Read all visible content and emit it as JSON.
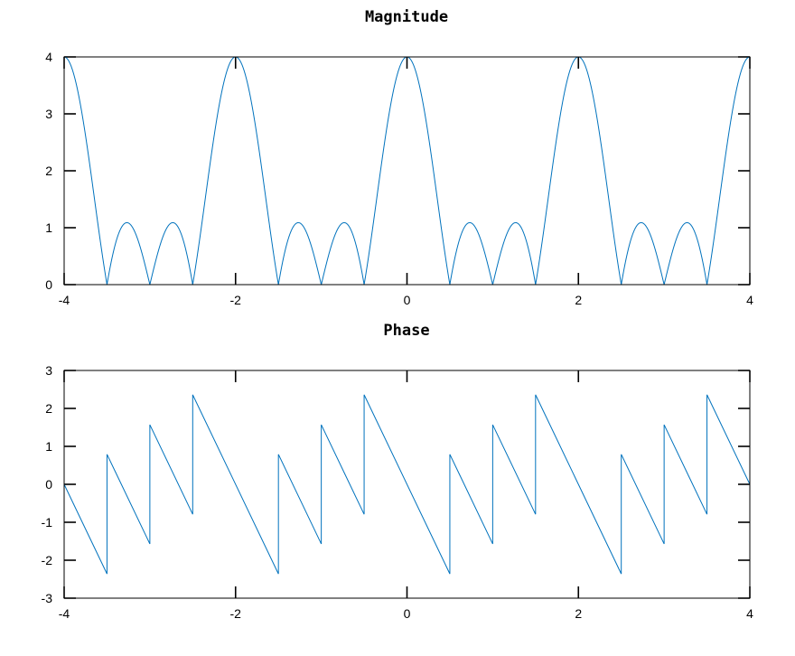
{
  "chart_data": [
    {
      "type": "line",
      "title": "Magnitude",
      "xlabel": "",
      "ylabel": "",
      "xlim": [
        -4,
        4
      ],
      "ylim": [
        0,
        4
      ],
      "xticks": [
        -4,
        -2,
        0,
        2,
        4
      ],
      "yticks": [
        0,
        1,
        2,
        3,
        4
      ],
      "xtick_labels": [
        "-4",
        "-2",
        "0",
        "2",
        "4"
      ],
      "ytick_labels": [
        "0",
        "1",
        "2",
        "3",
        "4"
      ],
      "grid": false,
      "series_color": "#0072bd",
      "series": [
        {
          "function": "abs(sin(2*pi*f)/sin(pi*f/2))",
          "period": 2,
          "max": 4,
          "zeros": [
            -3.5,
            -3,
            -2.5,
            -1.5,
            -1,
            -0.5,
            0.5,
            1,
            1.5,
            2.5,
            3,
            3.5
          ],
          "peaks": [
            [
              -4,
              4
            ],
            [
              -3.25,
              1.08
            ],
            [
              -2.75,
              1.08
            ],
            [
              -2,
              4
            ],
            [
              -1.25,
              1.08
            ],
            [
              -0.75,
              1.08
            ],
            [
              0,
              4
            ],
            [
              0.75,
              1.08
            ],
            [
              1.25,
              1.08
            ],
            [
              2,
              4
            ],
            [
              2.75,
              1.08
            ],
            [
              3.25,
              1.08
            ],
            [
              4,
              4
            ]
          ]
        }
      ]
    },
    {
      "type": "line",
      "title": "Phase",
      "xlabel": "",
      "ylabel": "",
      "xlim": [
        -4,
        4
      ],
      "ylim": [
        -3,
        3
      ],
      "xticks": [
        -4,
        -2,
        0,
        2,
        4
      ],
      "yticks": [
        -3,
        -2,
        -1,
        0,
        1,
        2,
        3
      ],
      "xtick_labels": [
        "-4",
        "-2",
        "0",
        "2",
        "4"
      ],
      "ytick_labels": [
        "-3",
        "-2",
        "-1",
        "0",
        "1",
        "2",
        "3"
      ],
      "grid": false,
      "series_color": "#0072bd",
      "series": [
        {
          "function": "angle(1 + e^(-j*pi*f) + e^(-j*2*pi*f) + e^(-j*3*pi*f))",
          "x": [
            -4,
            -3.5,
            -3.5,
            -3,
            -3,
            -2.5,
            -2.5,
            -1.5,
            -1.5,
            -1,
            -1,
            -0.5,
            -0.5,
            0.5,
            0.5,
            1,
            1,
            1.5,
            1.5,
            2.5,
            2.5,
            3,
            3,
            3.5,
            3.5,
            4
          ],
          "y": [
            0,
            -2.36,
            0.79,
            -1.57,
            1.57,
            -0.79,
            2.36,
            -2.36,
            0.79,
            -1.57,
            1.57,
            -0.79,
            2.36,
            -2.36,
            0.79,
            -1.57,
            1.57,
            -0.79,
            2.36,
            -2.36,
            0.79,
            -1.57,
            1.57,
            -0.79,
            2.36,
            0
          ]
        }
      ]
    }
  ]
}
